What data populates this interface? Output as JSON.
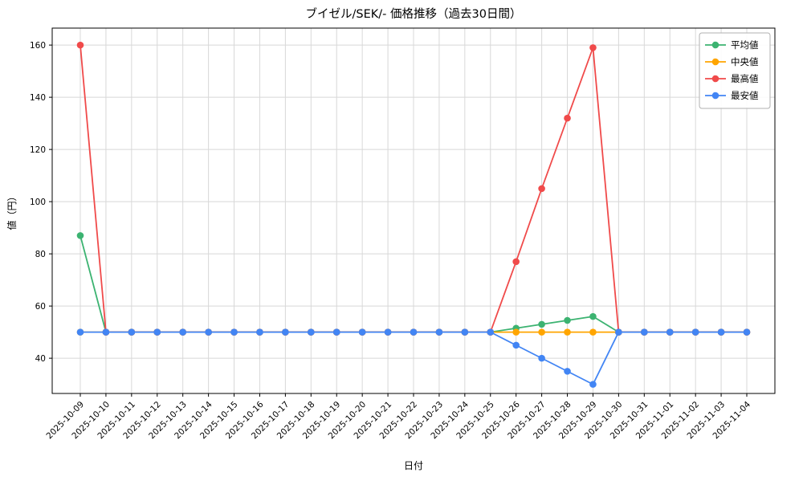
{
  "chart_data": {
    "type": "line",
    "title": "ブイゼル/SEK/- 価格推移（過去30日間）",
    "xlabel": "日付",
    "ylabel": "値（円）",
    "grid": true,
    "legend_position": "upper right",
    "ylim": [
      26.5,
      166.5
    ],
    "yticks": [
      40,
      60,
      80,
      100,
      120,
      140,
      160
    ],
    "x": [
      "2025-10-09",
      "2025-10-10",
      "2025-10-11",
      "2025-10-12",
      "2025-10-13",
      "2025-10-14",
      "2025-10-15",
      "2025-10-16",
      "2025-10-17",
      "2025-10-18",
      "2025-10-19",
      "2025-10-20",
      "2025-10-21",
      "2025-10-22",
      "2025-10-23",
      "2025-10-24",
      "2025-10-25",
      "2025-10-26",
      "2025-10-27",
      "2025-10-28",
      "2025-10-29",
      "2025-10-30",
      "2025-10-31",
      "2025-11-01",
      "2025-11-02",
      "2025-11-03",
      "2025-11-04"
    ],
    "series": [
      {
        "name": "平均値",
        "color": "#3cb371",
        "values": [
          87,
          50,
          50,
          50,
          50,
          50,
          50,
          50,
          50,
          50,
          50,
          50,
          50,
          50,
          50,
          50,
          50,
          51.5,
          53,
          54.5,
          56,
          50,
          50,
          50,
          50,
          50,
          50
        ]
      },
      {
        "name": "中央値",
        "color": "#ffa500",
        "values": [
          50,
          50,
          50,
          50,
          50,
          50,
          50,
          50,
          50,
          50,
          50,
          50,
          50,
          50,
          50,
          50,
          50,
          50,
          50,
          50,
          50,
          50,
          50,
          50,
          50,
          50,
          50
        ]
      },
      {
        "name": "最高値",
        "color": "#f04a4a",
        "values": [
          160,
          50,
          50,
          50,
          50,
          50,
          50,
          50,
          50,
          50,
          50,
          50,
          50,
          50,
          50,
          50,
          50,
          77,
          105,
          132,
          159,
          50,
          50,
          50,
          50,
          50,
          50
        ]
      },
      {
        "name": "最安値",
        "color": "#4285f4",
        "values": [
          50,
          50,
          50,
          50,
          50,
          50,
          50,
          50,
          50,
          50,
          50,
          50,
          50,
          50,
          50,
          50,
          50,
          45,
          40,
          35,
          30,
          50,
          50,
          50,
          50,
          50,
          50
        ]
      }
    ]
  }
}
